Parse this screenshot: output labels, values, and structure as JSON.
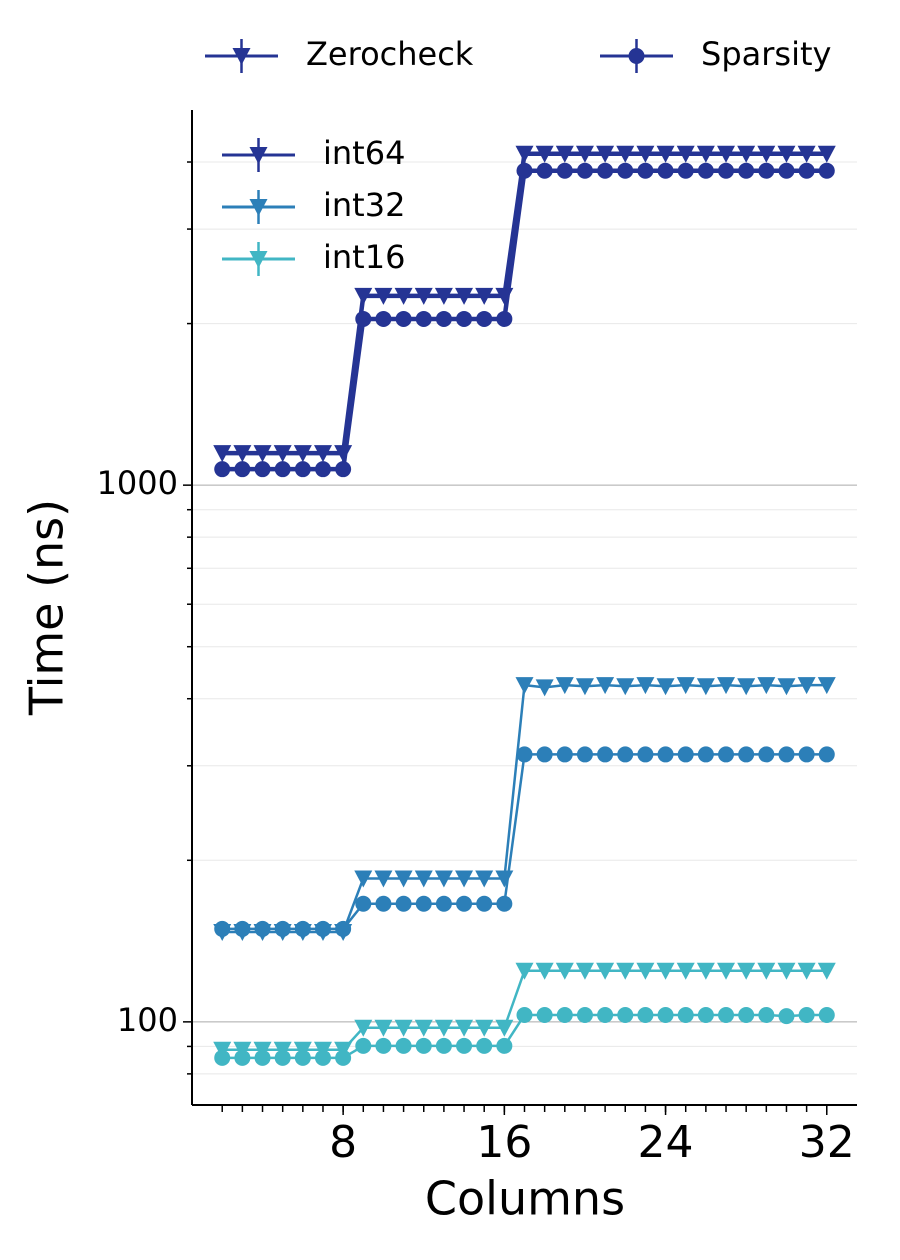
{
  "chart_data": {
    "type": "line",
    "xlabel": "Columns",
    "ylabel": "Time (ns)",
    "x": [
      2,
      3,
      4,
      5,
      6,
      7,
      8,
      9,
      10,
      11,
      12,
      13,
      14,
      15,
      16,
      17,
      18,
      19,
      20,
      21,
      22,
      23,
      24,
      25,
      26,
      27,
      28,
      29,
      30,
      31,
      32
    ],
    "xlim": [
      0.5,
      33.5
    ],
    "xticks": [
      8,
      16,
      24,
      32
    ],
    "ylim": [
      70,
      5000
    ],
    "log_y": true,
    "yticks": [
      100,
      1000
    ],
    "yminor_ticks": [
      80,
      90,
      200,
      300,
      400,
      500,
      600,
      700,
      800,
      900,
      2000,
      3000,
      4000
    ],
    "grid": true,
    "metrics": [
      {
        "name": "Zerocheck",
        "marker": "triangle-down"
      },
      {
        "name": "Sparsity",
        "marker": "circle"
      }
    ],
    "series": [
      {
        "name": "int64",
        "color": "#253494",
        "line_width": 4.5,
        "values": [
          [
            1147,
            1147,
            1147,
            1147,
            1147,
            1147,
            1147,
            2252,
            2252,
            2252,
            2252,
            2252,
            2252,
            2252,
            2252,
            4145,
            4145,
            4145,
            4145,
            4145,
            4145,
            4145,
            4145,
            4145,
            4145,
            4145,
            4145,
            4145,
            4145,
            4145,
            4145
          ],
          [
            1071,
            1071,
            1071,
            1071,
            1071,
            1071,
            1071,
            2040,
            2040,
            2040,
            2040,
            2040,
            2040,
            2040,
            2040,
            3853,
            3853,
            3853,
            3853,
            3853,
            3853,
            3853,
            3853,
            3853,
            3853,
            3853,
            3853,
            3853,
            3853,
            3853,
            3853
          ]
        ]
      },
      {
        "name": "int32",
        "color": "#2c7fb8",
        "line_width": 2.5,
        "values": [
          [
            147,
            147,
            147,
            147,
            147,
            147,
            147,
            185,
            185,
            185,
            185,
            185,
            185,
            185,
            185,
            424,
            420,
            424,
            422,
            424,
            422,
            424,
            422,
            424,
            422,
            424,
            422,
            424,
            422,
            424,
            424
          ],
          [
            149,
            149,
            149,
            149,
            149,
            149,
            149,
            166,
            166,
            166,
            166,
            166,
            166,
            166,
            166,
            315,
            315,
            315,
            315,
            315,
            315,
            315,
            315,
            315,
            315,
            315,
            315,
            315,
            315,
            315,
            315
          ]
        ]
      },
      {
        "name": "int16",
        "color": "#41b6c4",
        "line_width": 2.5,
        "values": [
          [
            88.7,
            88.7,
            88.7,
            88.7,
            88.7,
            88.7,
            88.7,
            97.5,
            97.5,
            97.5,
            97.5,
            97.5,
            97.5,
            97.5,
            97.5,
            124.5,
            124.5,
            124.5,
            124.5,
            124.5,
            124.5,
            124.5,
            124.5,
            124.5,
            124.5,
            124.5,
            124.5,
            124.5,
            124.5,
            124.5,
            124.5
          ],
          [
            85.7,
            85.7,
            85.7,
            85.7,
            85.7,
            85.7,
            85.7,
            90.2,
            90.2,
            90.2,
            90.2,
            90.2,
            90.2,
            90.2,
            90.2,
            103,
            103,
            103,
            103,
            103,
            103,
            103,
            103,
            103,
            103,
            103,
            103,
            103,
            102.5,
            103,
            103
          ]
        ]
      }
    ]
  }
}
